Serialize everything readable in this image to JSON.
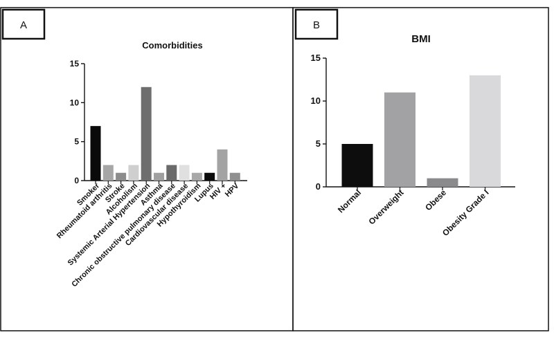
{
  "panels": [
    {
      "label": "A"
    },
    {
      "label": "B"
    }
  ],
  "chart_data": [
    {
      "type": "bar",
      "title": "Comorbidities",
      "xlabel": "",
      "ylabel": "",
      "ylim": [
        0,
        15
      ],
      "yticks": [
        0,
        5,
        10,
        15
      ],
      "grid": false,
      "legend": "none",
      "categories": [
        "Smoker",
        "Rheumatoid arthritis",
        "Stroke",
        "Alcoholism",
        "Systemic Arterial Hypertension",
        "Asthma",
        "Chronic obstructive pulmonary disease",
        "Cardiovascular disease",
        "Hypothyroidism",
        "Lupus",
        "HIV +",
        "HPV"
      ],
      "values": [
        7,
        2,
        1,
        2,
        12,
        1,
        2,
        2,
        1,
        1,
        4,
        1
      ],
      "colors": [
        "#0a0a0a",
        "#a6a6a6",
        "#8c8c8c",
        "#cfcfcf",
        "#6e6e6e",
        "#a0a0a0",
        "#6a6a6a",
        "#e0e0e0",
        "#a8a8a8",
        "#0a0a0a",
        "#a3a3a3",
        "#8f8f8f"
      ]
    },
    {
      "type": "bar",
      "title": "BMI",
      "xlabel": "",
      "ylabel": "",
      "ylim": [
        0,
        15
      ],
      "yticks": [
        0,
        5,
        10,
        15
      ],
      "grid": false,
      "legend": "none",
      "categories": [
        "Normal",
        "Overweight",
        "Obese",
        "Obesity Grade I"
      ],
      "values": [
        5,
        11,
        1,
        13
      ],
      "colors": [
        "#0d0d0d",
        "#a2a2a4",
        "#8a8a8c",
        "#d9d9db"
      ]
    }
  ]
}
